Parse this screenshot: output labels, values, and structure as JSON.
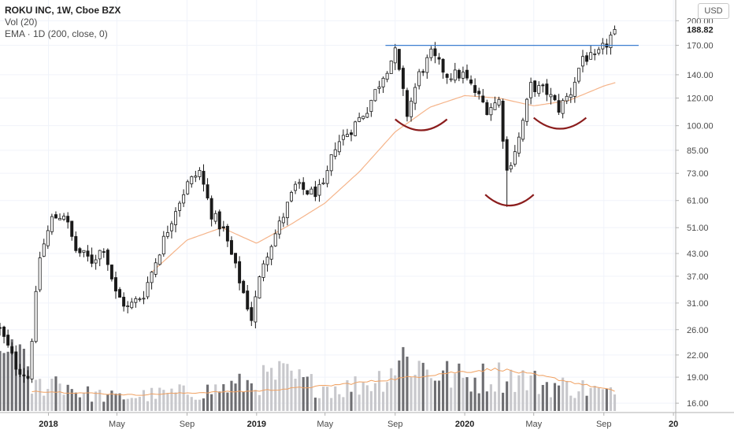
{
  "legend": {
    "title": "ROKU INC, 1W, Cboe BZX",
    "vol": "Vol (20)",
    "ema": "EMA · 1D (200, close, 0)"
  },
  "currency_label": "USD",
  "colors": {
    "up": "#ffffff",
    "down": "#1a1a1a",
    "outline": "#1a1a1a",
    "ema": "#f5b48a",
    "vol_up": "#c8c8cc",
    "vol_down": "#6e6e72",
    "vol_ma": "#f0a060",
    "resistance": "#3d7fd0",
    "arc": "#8b1d1d",
    "last_price_bg": "#ffffff"
  },
  "chart_data": {
    "type": "candlestick",
    "ticker": "ROKU INC",
    "interval": "1W",
    "exchange": "Cboe BZX",
    "y_scale": "log",
    "y_ticks": [
      16.0,
      19.0,
      22.0,
      26.0,
      31.0,
      37.0,
      43.0,
      51.0,
      61.0,
      73.0,
      85.0,
      100.0,
      120.0,
      140.0,
      170.0,
      200.0
    ],
    "ylim": [
      15.2,
      220
    ],
    "x_ticks": [
      {
        "label": "2018",
        "date": "2018-01-01",
        "bold": true
      },
      {
        "label": "May",
        "date": "2018-05-01",
        "bold": false
      },
      {
        "label": "Sep",
        "date": "2018-09-01",
        "bold": false
      },
      {
        "label": "2019",
        "date": "2019-01-01",
        "bold": true
      },
      {
        "label": "May",
        "date": "2019-05-01",
        "bold": false
      },
      {
        "label": "Sep",
        "date": "2019-09-01",
        "bold": false
      },
      {
        "label": "2020",
        "date": "2020-01-01",
        "bold": true
      },
      {
        "label": "May",
        "date": "2020-05-01",
        "bold": false
      },
      {
        "label": "Sep",
        "date": "2020-09-01",
        "bold": false
      },
      {
        "label": "20",
        "date": "2021-01-01",
        "bold": true
      }
    ],
    "xlim": [
      "2017-10-08",
      "2021-01-05"
    ],
    "last_price": 188.82,
    "resistance_level": 170,
    "arcs": [
      {
        "from": "2019-09-01",
        "to": "2019-12-01",
        "bottom_price": 97
      },
      {
        "from": "2020-02-06",
        "to": "2020-05-01",
        "bottom_price": 59
      },
      {
        "from": "2020-05-01",
        "to": "2020-08-01",
        "bottom_price": 98
      }
    ],
    "candle_anchors": [
      [
        "2017-10-08",
        26
      ],
      [
        "2017-11-05",
        20.5
      ],
      [
        "2017-11-26",
        19
      ],
      [
        "2017-12-17",
        42
      ],
      [
        "2018-01-07",
        54
      ],
      [
        "2018-01-28",
        56
      ],
      [
        "2018-02-18",
        44
      ],
      [
        "2018-03-18",
        41
      ],
      [
        "2018-04-08",
        45
      ],
      [
        "2018-04-29",
        33
      ],
      [
        "2018-05-20",
        30
      ],
      [
        "2018-06-17",
        33
      ],
      [
        "2018-07-15",
        44
      ],
      [
        "2018-08-12",
        58
      ],
      [
        "2018-09-02",
        68
      ],
      [
        "2018-09-23",
        74
      ],
      [
        "2018-10-14",
        56
      ],
      [
        "2018-11-04",
        50
      ],
      [
        "2018-12-02",
        36
      ],
      [
        "2018-12-23",
        28
      ],
      [
        "2019-01-13",
        41
      ],
      [
        "2019-02-10",
        52
      ],
      [
        "2019-03-10",
        67
      ],
      [
        "2019-04-07",
        64
      ],
      [
        "2019-04-28",
        66
      ],
      [
        "2019-05-19",
        88
      ],
      [
        "2019-06-16",
        98
      ],
      [
        "2019-07-14",
        112
      ],
      [
        "2019-08-11",
        140
      ],
      [
        "2019-09-01",
        162
      ],
      [
        "2019-09-22",
        108
      ],
      [
        "2019-10-13",
        140
      ],
      [
        "2019-11-03",
        160
      ],
      [
        "2019-12-01",
        140
      ],
      [
        "2019-12-29",
        140
      ],
      [
        "2020-01-19",
        125
      ],
      [
        "2020-02-09",
        112
      ],
      [
        "2020-03-01",
        118
      ],
      [
        "2020-03-15",
        74
      ],
      [
        "2020-04-05",
        92
      ],
      [
        "2020-04-26",
        130
      ],
      [
        "2020-05-24",
        125
      ],
      [
        "2020-06-14",
        112
      ],
      [
        "2020-07-05",
        125
      ],
      [
        "2020-07-26",
        158
      ],
      [
        "2020-08-16",
        155
      ],
      [
        "2020-09-06",
        172
      ],
      [
        "2020-09-20",
        188.82
      ]
    ],
    "ema_anchors": [
      [
        "2018-07-01",
        38
      ],
      [
        "2018-09-01",
        47
      ],
      [
        "2018-11-01",
        51
      ],
      [
        "2019-01-01",
        46
      ],
      [
        "2019-03-01",
        52
      ],
      [
        "2019-05-01",
        60
      ],
      [
        "2019-07-01",
        74
      ],
      [
        "2019-09-01",
        96
      ],
      [
        "2019-11-01",
        113
      ],
      [
        "2020-01-01",
        122
      ],
      [
        "2020-03-01",
        120
      ],
      [
        "2020-05-01",
        114
      ],
      [
        "2020-07-01",
        118
      ],
      [
        "2020-09-01",
        130
      ],
      [
        "2020-09-22",
        133
      ]
    ],
    "volume_anchors": [
      [
        "2017-10-08",
        0.45
      ],
      [
        "2017-11-01",
        0.85
      ],
      [
        "2017-12-01",
        0.25
      ],
      [
        "2018-01-15",
        0.35
      ],
      [
        "2018-03-01",
        0.2
      ],
      [
        "2018-05-01",
        0.15
      ],
      [
        "2018-07-01",
        0.18
      ],
      [
        "2018-10-01",
        0.22
      ],
      [
        "2018-12-15",
        0.3
      ],
      [
        "2019-02-15",
        0.4
      ],
      [
        "2019-04-01",
        0.3
      ],
      [
        "2019-06-01",
        0.25
      ],
      [
        "2019-08-01",
        0.35
      ],
      [
        "2019-09-15",
        0.6
      ],
      [
        "2019-11-01",
        0.45
      ],
      [
        "2020-01-01",
        0.35
      ],
      [
        "2020-03-15",
        0.4
      ],
      [
        "2020-05-15",
        0.3
      ],
      [
        "2020-08-01",
        0.25
      ],
      [
        "2020-09-20",
        0.18
      ]
    ],
    "volume_ma_anchors": [
      [
        "2017-12-01",
        0.2
      ],
      [
        "2018-03-01",
        0.18
      ],
      [
        "2018-06-01",
        0.16
      ],
      [
        "2018-09-01",
        0.18
      ],
      [
        "2019-01-01",
        0.2
      ],
      [
        "2019-05-01",
        0.25
      ],
      [
        "2019-09-01",
        0.32
      ],
      [
        "2019-12-01",
        0.38
      ],
      [
        "2020-03-01",
        0.42
      ],
      [
        "2020-06-01",
        0.33
      ],
      [
        "2020-09-20",
        0.2
      ]
    ]
  }
}
